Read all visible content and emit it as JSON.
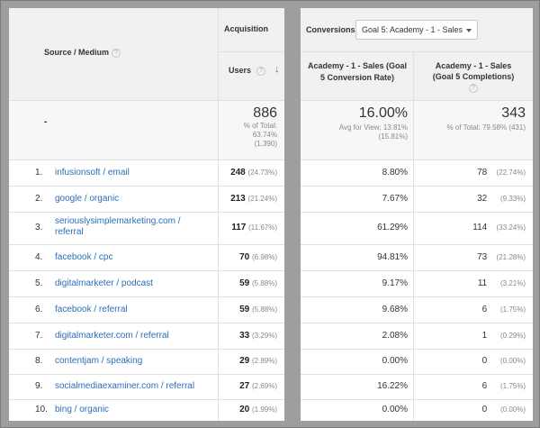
{
  "headers": {
    "source_medium": "Source / Medium",
    "acquisition": "Acquisition",
    "users": "Users",
    "conversions": "Conversions",
    "goal_dropdown": "Goal 5: Academy - 1 - Sales",
    "conv_rate_line1": "Academy - 1 - Sales (Goal",
    "conv_rate_line2": "5 Conversion Rate)",
    "completions_line1": "Academy - 1 - Sales",
    "completions_line2": "(Goal 5 Completions)",
    "help_glyph": "?"
  },
  "totals": {
    "label": "-",
    "users": "886",
    "users_sub1": "% of Total:",
    "users_sub2": "63.74%",
    "users_sub3": "(1,390)",
    "rate": "16.00%",
    "rate_sub1": "Avg for View: 13.81%",
    "rate_sub2": "(15.81%)",
    "completions": "343",
    "completions_sub": "% of Total: 79.58% (431)"
  },
  "rows": [
    {
      "idx": "1.",
      "source": "infusionsoft / email",
      "users": "248",
      "users_pct": "(24.73%)",
      "rate": "8.80%",
      "completions": "78",
      "completions_pct": "(22.74%)"
    },
    {
      "idx": "2.",
      "source": "google / organic",
      "users": "213",
      "users_pct": "(21.24%)",
      "rate": "7.67%",
      "completions": "32",
      "completions_pct": "(9.33%)"
    },
    {
      "idx": "3.",
      "source": "seriouslysimplemarketing.com /",
      "source2": "referral",
      "users": "117",
      "users_pct": "(11.67%)",
      "rate": "61.29%",
      "completions": "114",
      "completions_pct": "(33.24%)"
    },
    {
      "idx": "4.",
      "source": "facebook / cpc",
      "users": "70",
      "users_pct": "(6.98%)",
      "rate": "94.81%",
      "completions": "73",
      "completions_pct": "(21.28%)"
    },
    {
      "idx": "5.",
      "source": "digitalmarketer / podcast",
      "users": "59",
      "users_pct": "(5.88%)",
      "rate": "9.17%",
      "completions": "11",
      "completions_pct": "(3.21%)"
    },
    {
      "idx": "6.",
      "source": "facebook / referral",
      "users": "59",
      "users_pct": "(5.88%)",
      "rate": "9.68%",
      "completions": "6",
      "completions_pct": "(1.75%)"
    },
    {
      "idx": "7.",
      "source": "digitalmarketer.com / referral",
      "users": "33",
      "users_pct": "(3.29%)",
      "rate": "2.08%",
      "completions": "1",
      "completions_pct": "(0.29%)"
    },
    {
      "idx": "8.",
      "source": "contentjam / speaking",
      "users": "29",
      "users_pct": "(2.89%)",
      "rate": "0.00%",
      "completions": "0",
      "completions_pct": "(0.00%)"
    },
    {
      "idx": "9.",
      "source": "socialmediaexaminer.com / referral",
      "users": "27",
      "users_pct": "(2.69%)",
      "rate": "16.22%",
      "completions": "6",
      "completions_pct": "(1.75%)"
    },
    {
      "idx": "10.",
      "source": "bing / organic",
      "users": "20",
      "users_pct": "(1.99%)",
      "rate": "0.00%",
      "completions": "0",
      "completions_pct": "(0.00%)"
    }
  ]
}
